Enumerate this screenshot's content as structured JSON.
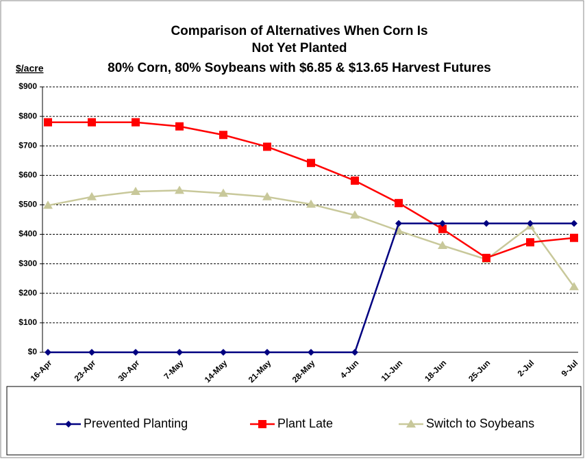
{
  "chart_data": {
    "type": "line",
    "title": "Comparison of Alternatives When Corn Is",
    "subtitle": "Not Yet Planted",
    "subtitle2": "80% Corn, 80% Soybeans with $6.85 & $13.65 Harvest Futures",
    "y_label": "$/acre",
    "categories": [
      "16-Apr",
      "23-Apr",
      "30-Apr",
      "7-May",
      "14-May",
      "21-May",
      "28-May",
      "4-Jun",
      "11-Jun",
      "18-Jun",
      "25-Jun",
      "2-Jul",
      "9-Jul"
    ],
    "series": [
      {
        "name": "Prevented Planting",
        "color": "#000080",
        "marker": "diamond",
        "values": [
          0,
          0,
          0,
          0,
          0,
          0,
          0,
          0,
          437,
          437,
          437,
          437,
          437
        ]
      },
      {
        "name": "Plant Late",
        "color": "#ff0000",
        "marker": "square",
        "values": [
          780,
          780,
          780,
          766,
          737,
          697,
          642,
          582,
          506,
          418,
          320,
          373,
          388
        ]
      },
      {
        "name": "Switch to Soybeans",
        "color": "#c8c89a",
        "marker": "triangle",
        "values": [
          498,
          527,
          545,
          549,
          539,
          527,
          502,
          465,
          412,
          362,
          315,
          428,
          222
        ]
      }
    ],
    "ylim": [
      0,
      900
    ],
    "yticks": [
      {
        "value": 0,
        "label": "$0"
      },
      {
        "value": 100,
        "label": "$100"
      },
      {
        "value": 200,
        "label": "$200"
      },
      {
        "value": 300,
        "label": "$300"
      },
      {
        "value": 400,
        "label": "$400"
      },
      {
        "value": 500,
        "label": "$500"
      },
      {
        "value": 600,
        "label": "$600"
      },
      {
        "value": 700,
        "label": "$700"
      },
      {
        "value": 800,
        "label": "$800"
      },
      {
        "value": 900,
        "label": "$900"
      }
    ],
    "grid": true,
    "legend": "bottom"
  }
}
